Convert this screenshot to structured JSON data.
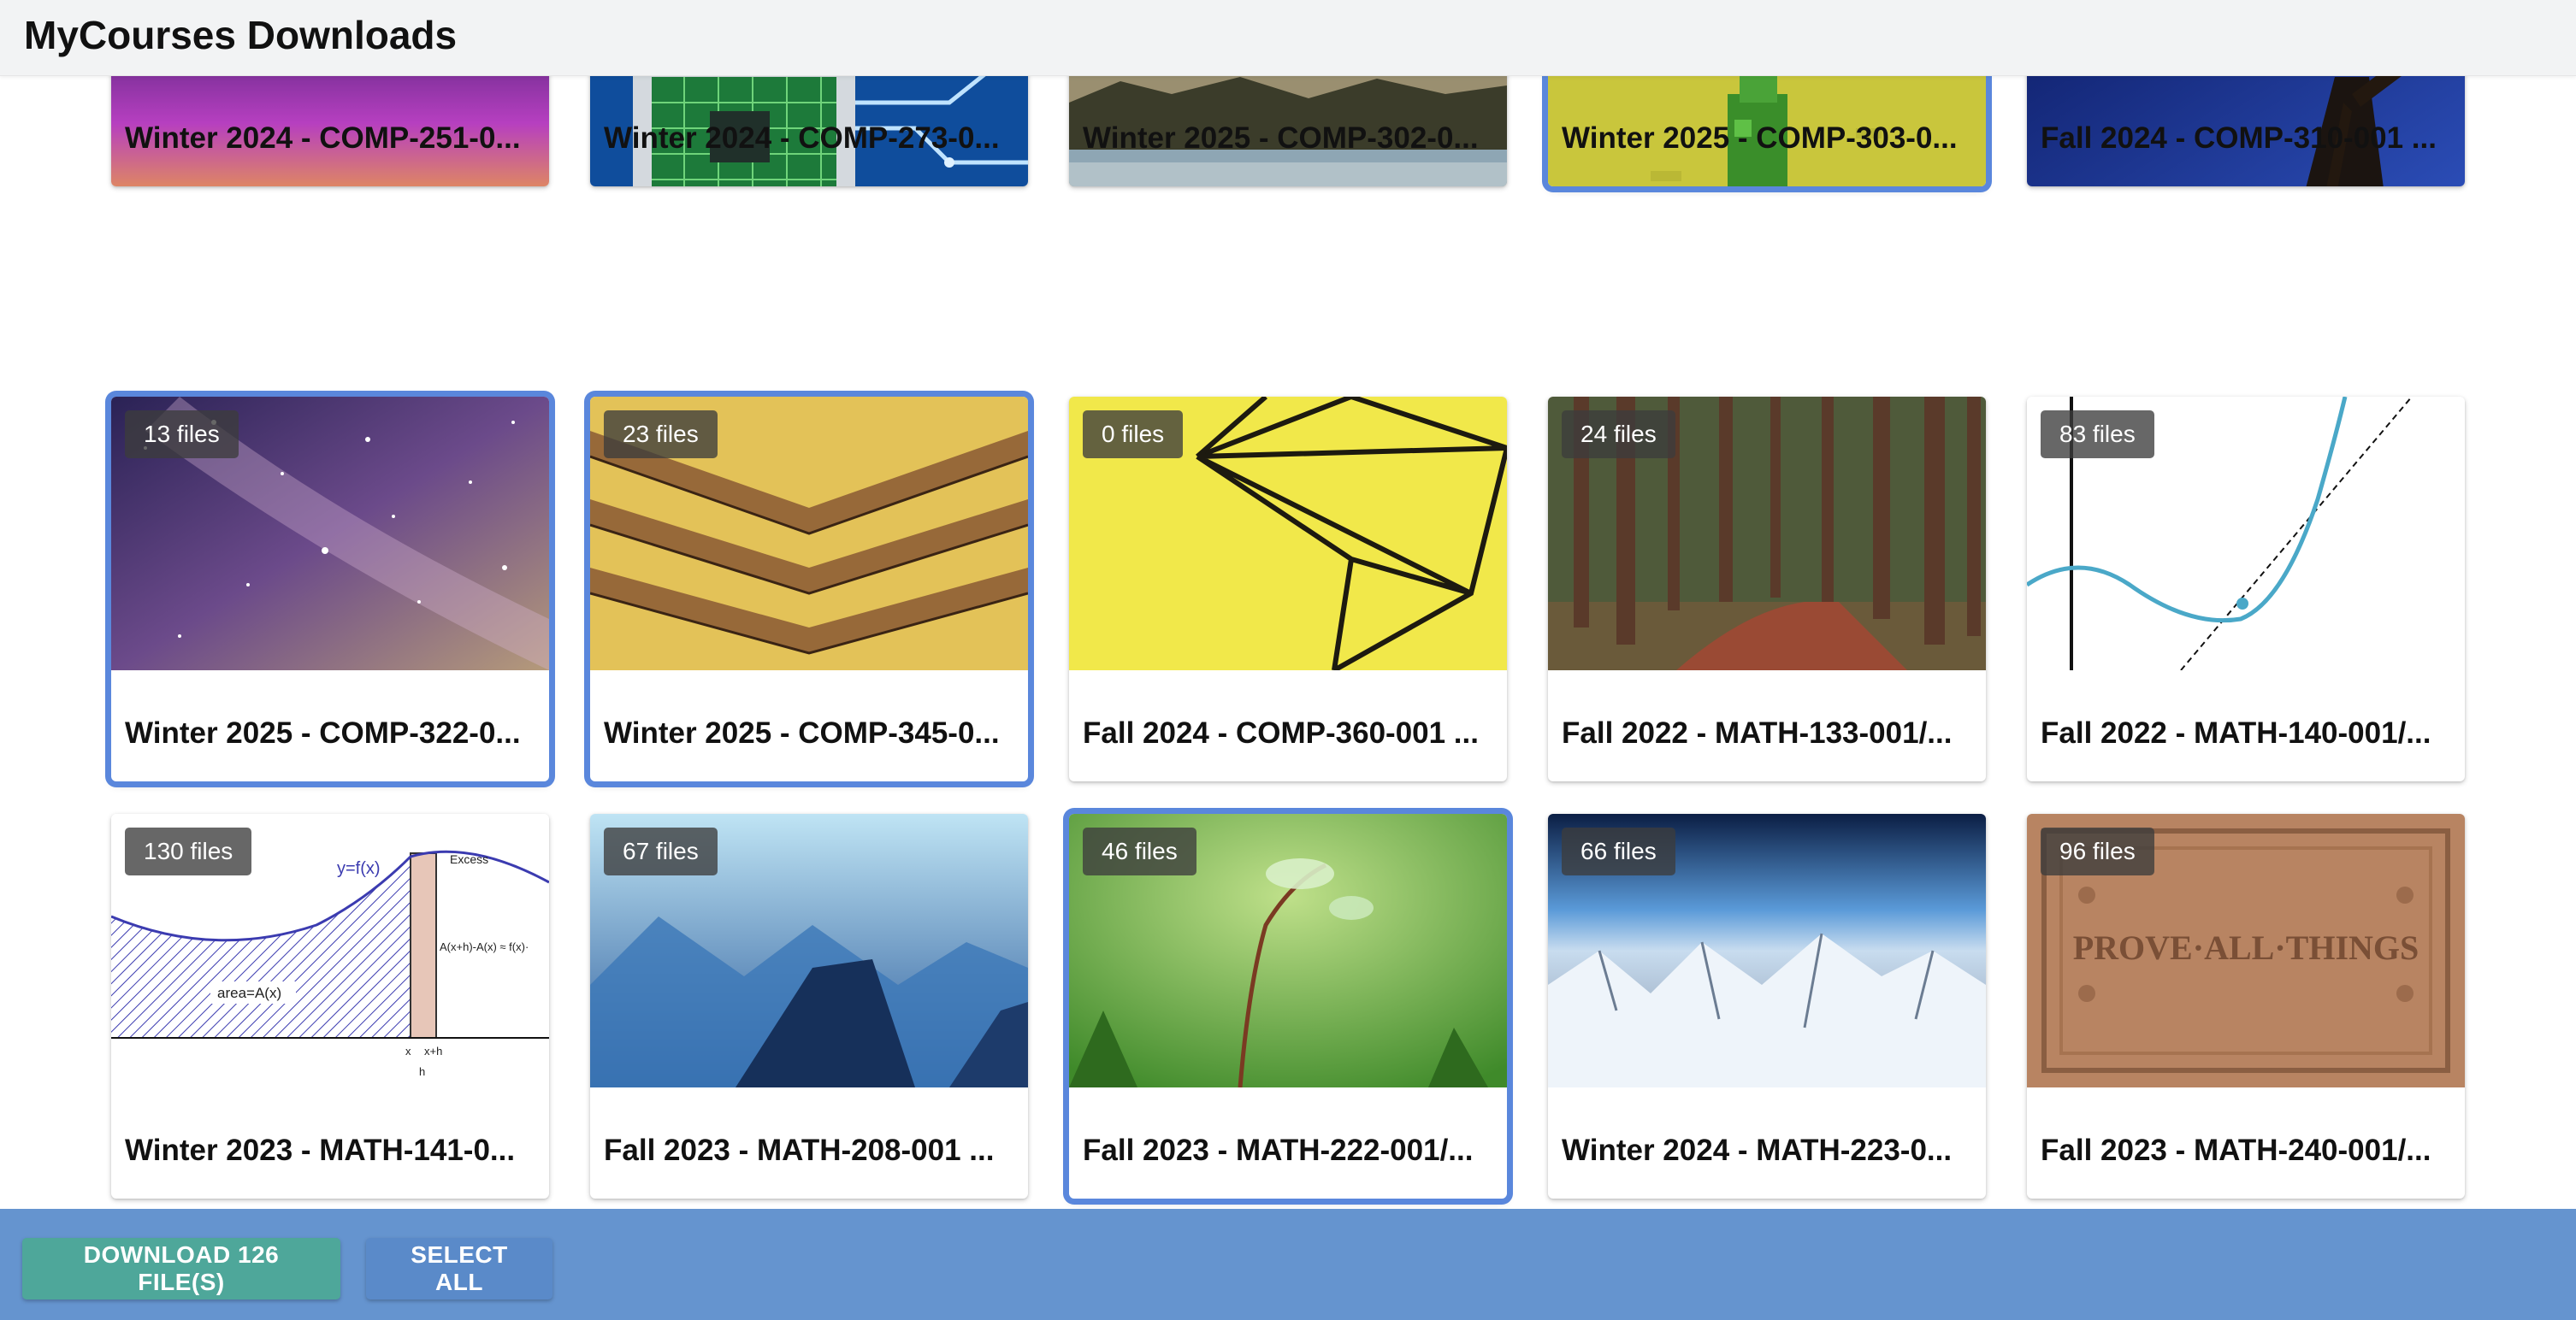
{
  "app": {
    "title": "MyCourses Downloads"
  },
  "courses": [
    {
      "title": "Winter 2024 - COMP-251-0...",
      "files": "",
      "selected": false,
      "thumb": "aurora-sky"
    },
    {
      "title": "Winter 2024 - COMP-273-0...",
      "files": "",
      "selected": false,
      "thumb": "circuit-chip"
    },
    {
      "title": "Winter 2025 - COMP-302-0...",
      "files": "",
      "selected": false,
      "thumb": "lake-landscape"
    },
    {
      "title": "Winter 2025 - COMP-303-0...",
      "files": "",
      "selected": true,
      "thumb": "pixel-tree"
    },
    {
      "title": "Fall 2024 - COMP-310-001 ...",
      "files": "",
      "selected": false,
      "thumb": "windmill-night"
    },
    {
      "title": "Winter 2025 - COMP-322-0...",
      "files": "13 files",
      "selected": true,
      "thumb": "milky-way"
    },
    {
      "title": "Winter 2025 - COMP-345-0...",
      "files": "23 files",
      "selected": true,
      "thumb": "palm-leaf"
    },
    {
      "title": "Fall 2024 - COMP-360-001 ...",
      "files": "0 files",
      "selected": false,
      "thumb": "wire-geometry"
    },
    {
      "title": "Fall 2022 - MATH-133-001/...",
      "files": "24 files",
      "selected": false,
      "thumb": "forest-trees"
    },
    {
      "title": "Fall 2022 - MATH-140-001/...",
      "files": "83 files",
      "selected": false,
      "thumb": "tangent-graph"
    },
    {
      "title": "Winter 2023 - MATH-141-0...",
      "files": "130 files",
      "selected": false,
      "thumb": "integral-diagram",
      "diagram_labels": {
        "fn": "y=f(x)",
        "excess": "Excess",
        "area": "area=A(x)",
        "approx": "A(x+h)-A(x) ≈ f(x)·",
        "x": "x",
        "xh": "x+h",
        "h": "h"
      }
    },
    {
      "title": "Fall 2023 - MATH-208-001 ...",
      "files": "67 files",
      "selected": false,
      "thumb": "blue-mountains"
    },
    {
      "title": "Fall 2023 - MATH-222-001/...",
      "files": "46 files",
      "selected": true,
      "thumb": "green-sprout"
    },
    {
      "title": "Winter 2024 - MATH-223-0...",
      "files": "66 files",
      "selected": false,
      "thumb": "earth-mountains"
    },
    {
      "title": "Fall 2023 - MATH-240-001/...",
      "files": "96 files",
      "selected": false,
      "thumb": "stone-inscription",
      "inscription": "PROVE·ALL·THINGS"
    }
  ],
  "actions": {
    "download_label": "DOWNLOAD 126 FILE(S)",
    "select_all_label": "SELECT ALL"
  },
  "colors": {
    "selection": "#5a87dc",
    "action_bar": "#6594cf",
    "download_button": "#4ea79a",
    "select_all_button": "#5a8ac9"
  }
}
